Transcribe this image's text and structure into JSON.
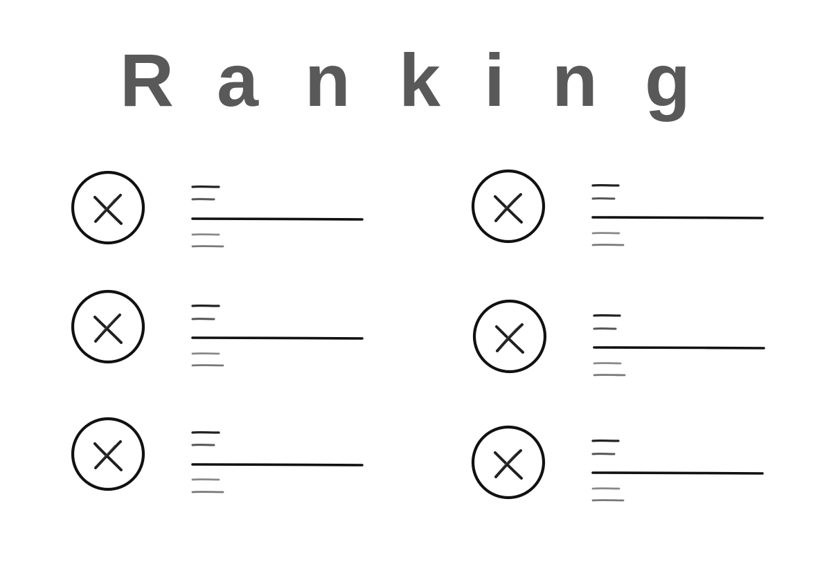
{
  "title": {
    "letters": [
      "R",
      "a",
      "n",
      "k",
      "i",
      "n",
      "g"
    ]
  },
  "ranking_items": [
    {
      "avatar_icon": "close-icon",
      "placeholder": "text-lines"
    },
    {
      "avatar_icon": "close-icon",
      "placeholder": "text-lines"
    },
    {
      "avatar_icon": "close-icon",
      "placeholder": "text-lines"
    },
    {
      "avatar_icon": "close-icon",
      "placeholder": "text-lines"
    },
    {
      "avatar_icon": "close-icon",
      "placeholder": "text-lines"
    },
    {
      "avatar_icon": "close-icon",
      "placeholder": "text-lines"
    }
  ]
}
